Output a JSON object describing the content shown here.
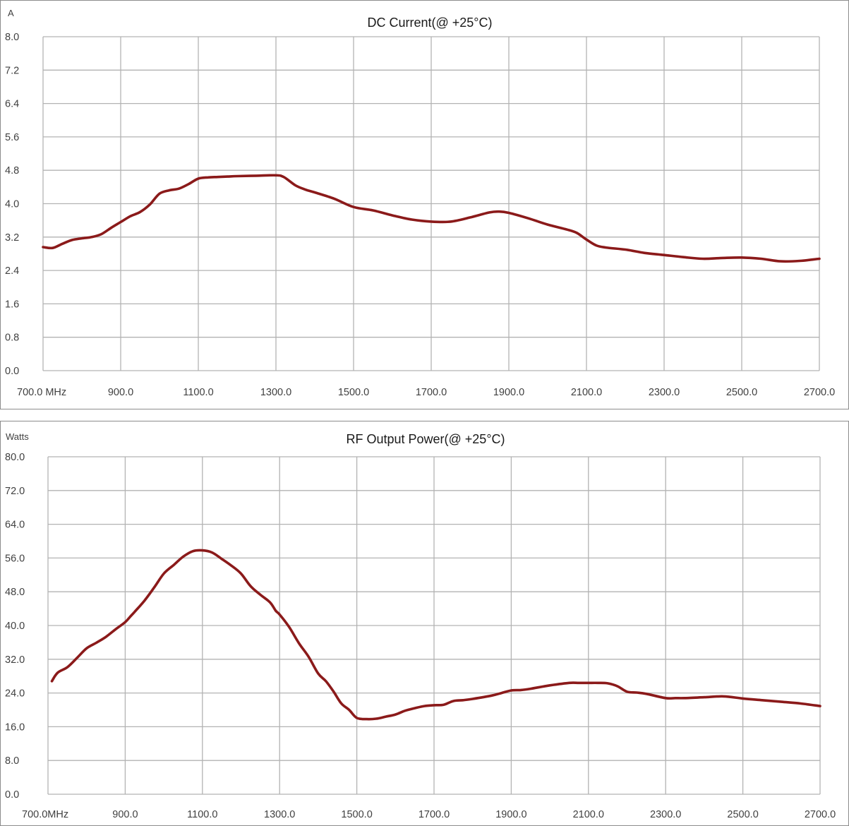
{
  "chart_data": [
    {
      "type": "line",
      "title": "DC Current(@ +25°C)",
      "ylabel": "A",
      "xlabel": "",
      "xlim": [
        700,
        2700
      ],
      "ylim": [
        0,
        8.0
      ],
      "x_ticks": [
        700,
        900,
        1100,
        1300,
        1500,
        1700,
        1900,
        2100,
        2300,
        2500,
        2700
      ],
      "x_tick_labels": [
        "700.0 MHz",
        "900.0",
        "1100.0",
        "1300.0",
        "1500.0",
        "1700.0",
        "1900.0",
        "2100.0",
        "2300.0",
        "2500.0",
        "2700.0"
      ],
      "y_ticks": [
        0,
        0.8,
        1.6,
        2.4,
        3.2,
        4.0,
        4.8,
        5.6,
        6.4,
        7.2,
        8.0
      ],
      "y_tick_labels": [
        "0.0",
        "0.8",
        "1.6",
        "2.4",
        "3.2",
        "4.0",
        "4.8",
        "5.6",
        "6.4",
        "7.2",
        "8.0"
      ],
      "grid": true,
      "line_color": "#8b1a1a",
      "series": [
        {
          "x": [
            700,
            725,
            750,
            775,
            800,
            825,
            850,
            875,
            900,
            925,
            950,
            975,
            1000,
            1025,
            1050,
            1075,
            1100,
            1125,
            1150,
            1175,
            1200,
            1250,
            1300,
            1320,
            1350,
            1375,
            1400,
            1450,
            1500,
            1550,
            1600,
            1650,
            1700,
            1750,
            1800,
            1850,
            1875,
            1900,
            1950,
            2000,
            2050,
            2075,
            2100,
            2125,
            2150,
            2200,
            2250,
            2300,
            2350,
            2400,
            2450,
            2500,
            2550,
            2600,
            2650,
            2700
          ],
          "y": [
            2.96,
            2.94,
            3.04,
            3.13,
            3.17,
            3.2,
            3.27,
            3.42,
            3.56,
            3.7,
            3.8,
            3.98,
            4.24,
            4.32,
            4.36,
            4.47,
            4.6,
            4.63,
            4.64,
            4.65,
            4.66,
            4.67,
            4.68,
            4.64,
            4.44,
            4.34,
            4.27,
            4.12,
            3.92,
            3.84,
            3.72,
            3.62,
            3.57,
            3.57,
            3.67,
            3.79,
            3.81,
            3.78,
            3.65,
            3.5,
            3.38,
            3.3,
            3.14,
            3.0,
            2.95,
            2.9,
            2.82,
            2.77,
            2.72,
            2.68,
            2.7,
            2.71,
            2.68,
            2.62,
            2.63,
            2.68
          ]
        }
      ]
    },
    {
      "type": "line",
      "title": "RF Output Power(@ +25°C)",
      "ylabel": "Watts",
      "xlabel": "",
      "xlim": [
        700,
        2700
      ],
      "ylim": [
        0,
        80.0
      ],
      "x_ticks": [
        700,
        900,
        1100,
        1300,
        1500,
        1700,
        1900,
        2100,
        2300,
        2500,
        2700
      ],
      "x_tick_labels": [
        "700.0MHz",
        "900.0",
        "1100.0",
        "1300.0",
        "1500.0",
        "1700.0",
        "1900.0",
        "2100.0",
        "2300.0",
        "2500.0",
        "2700.0"
      ],
      "y_ticks": [
        0,
        8,
        16,
        24,
        32,
        40,
        48,
        56,
        64,
        72,
        80
      ],
      "y_tick_labels": [
        "0.0",
        "8.0",
        "16.0",
        "24.0",
        "32.0",
        "40.0",
        "48.0",
        "56.0",
        "64.0",
        "72.0",
        "80.0"
      ],
      "grid": true,
      "line_color": "#8b1a1a",
      "series": [
        {
          "x": [
            710,
            725,
            750,
            775,
            800,
            825,
            850,
            875,
            900,
            915,
            925,
            950,
            975,
            1000,
            1025,
            1050,
            1075,
            1100,
            1125,
            1150,
            1175,
            1200,
            1225,
            1250,
            1275,
            1290,
            1300,
            1325,
            1350,
            1375,
            1400,
            1420,
            1440,
            1460,
            1480,
            1500,
            1525,
            1550,
            1575,
            1600,
            1625,
            1650,
            1675,
            1700,
            1725,
            1750,
            1775,
            1800,
            1850,
            1875,
            1900,
            1925,
            1950,
            2000,
            2050,
            2075,
            2100,
            2125,
            2150,
            2175,
            2200,
            2225,
            2250,
            2300,
            2325,
            2350,
            2400,
            2450,
            2500,
            2550,
            2600,
            2650,
            2700
          ],
          "y": [
            26.8,
            28.8,
            30.1,
            32.3,
            34.6,
            35.9,
            37.3,
            39.1,
            40.8,
            42.3,
            43.3,
            45.9,
            49.0,
            52.3,
            54.3,
            56.3,
            57.6,
            57.8,
            57.3,
            55.8,
            54.2,
            52.3,
            49.3,
            47.3,
            45.5,
            43.5,
            42.6,
            39.6,
            35.8,
            32.6,
            28.6,
            26.8,
            24.3,
            21.5,
            20.0,
            18.1,
            17.8,
            17.9,
            18.4,
            18.9,
            19.8,
            20.4,
            20.9,
            21.1,
            21.2,
            22.1,
            22.3,
            22.6,
            23.4,
            24.0,
            24.6,
            24.7,
            25.0,
            25.8,
            26.4,
            26.4,
            26.4,
            26.4,
            26.3,
            25.6,
            24.3,
            24.1,
            23.8,
            22.8,
            22.8,
            22.8,
            23.0,
            23.2,
            22.7,
            22.3,
            21.9,
            21.5,
            20.9
          ]
        }
      ]
    }
  ]
}
